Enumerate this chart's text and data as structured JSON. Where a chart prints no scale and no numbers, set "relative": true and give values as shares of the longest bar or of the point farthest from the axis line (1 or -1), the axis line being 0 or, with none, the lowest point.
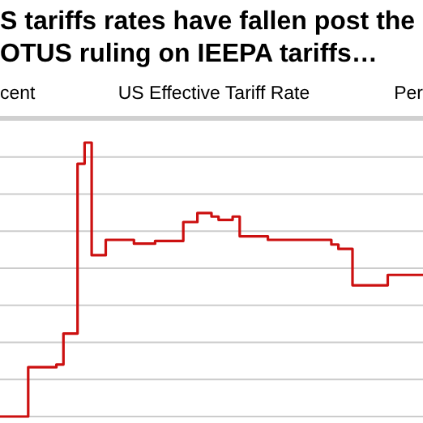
{
  "chart_data": {
    "type": "step",
    "title": "S tariffs rates have fallen post the\nOTUS ruling on IEEPA tariffs…",
    "subtitle": "US Effective Tariff Rate",
    "ylabel": "cent",
    "y2label": "Per",
    "relative": true,
    "grid": "y",
    "categories": [
      null,
      null,
      null,
      null,
      null,
      null,
      null,
      null,
      null,
      null,
      null,
      null,
      null,
      null,
      null,
      null,
      null,
      null,
      null,
      null,
      null,
      null,
      null,
      null,
      null,
      null,
      null,
      null,
      null,
      null,
      null,
      null,
      null,
      null,
      null,
      null,
      null,
      null,
      null,
      null,
      null,
      null,
      null,
      null,
      null,
      null,
      null,
      null,
      null,
      null,
      null,
      null,
      null,
      null,
      null,
      null,
      null,
      null,
      null,
      null,
      null
    ],
    "series": [
      {
        "color": "#cc1010",
        "values": [
          0,
          0,
          0,
          0,
          0.18,
          0.18,
          0.18,
          0.18,
          0.19,
          0.303,
          0.303,
          0.923,
          1,
          0.589,
          0.589,
          0.645,
          0.645,
          0.645,
          0.645,
          0.631,
          0.631,
          0.631,
          0.641,
          0.641,
          0.641,
          0.641,
          0.71,
          0.71,
          0.743,
          0.743,
          0.73,
          0.718,
          0.718,
          0.73,
          0.658,
          0.658,
          0.658,
          0.658,
          0.645,
          0.645,
          0.645,
          0.645,
          0.645,
          0.645,
          0.645,
          0.645,
          0.645,
          0.628,
          0.612,
          0.612,
          0.479,
          0.479,
          0.479,
          0.479,
          0.479,
          0.517,
          0.517,
          0.517,
          0.517,
          0.517,
          0.517
        ]
      }
    ]
  }
}
